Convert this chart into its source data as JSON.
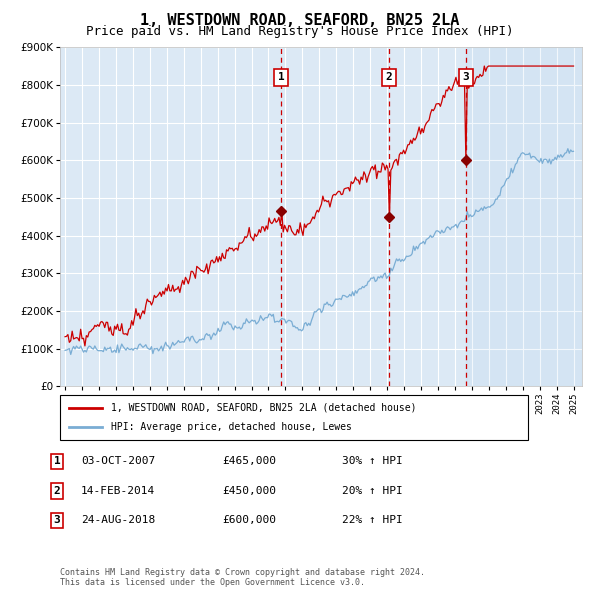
{
  "title": "1, WESTDOWN ROAD, SEAFORD, BN25 2LA",
  "subtitle": "Price paid vs. HM Land Registry's House Price Index (HPI)",
  "ylim": [
    0,
    900000
  ],
  "xlim_start": 1994.7,
  "xlim_end": 2025.5,
  "background_color": "#dce9f5",
  "grid_color": "#ffffff",
  "red_line_color": "#cc0000",
  "blue_line_color": "#7aadd4",
  "vline_color": "#cc0000",
  "vline_dates": [
    2007.75,
    2014.12,
    2018.65
  ],
  "vline_labels": [
    "1",
    "2",
    "3"
  ],
  "sale_points": [
    {
      "t": 2007.75,
      "y": 465000
    },
    {
      "t": 2014.12,
      "y": 450000
    },
    {
      "t": 2018.65,
      "y": 600000
    }
  ],
  "legend_line1": "1, WESTDOWN ROAD, SEAFORD, BN25 2LA (detached house)",
  "legend_line2": "HPI: Average price, detached house, Lewes",
  "table_rows": [
    [
      "1",
      "03-OCT-2007",
      "£465,000",
      "30% ↑ HPI"
    ],
    [
      "2",
      "14-FEB-2014",
      "£450,000",
      "20% ↑ HPI"
    ],
    [
      "3",
      "24-AUG-2018",
      "£600,000",
      "22% ↑ HPI"
    ]
  ],
  "footer": "Contains HM Land Registry data © Crown copyright and database right 2024.\nThis data is licensed under the Open Government Licence v3.0.",
  "title_fontsize": 11,
  "subtitle_fontsize": 9
}
